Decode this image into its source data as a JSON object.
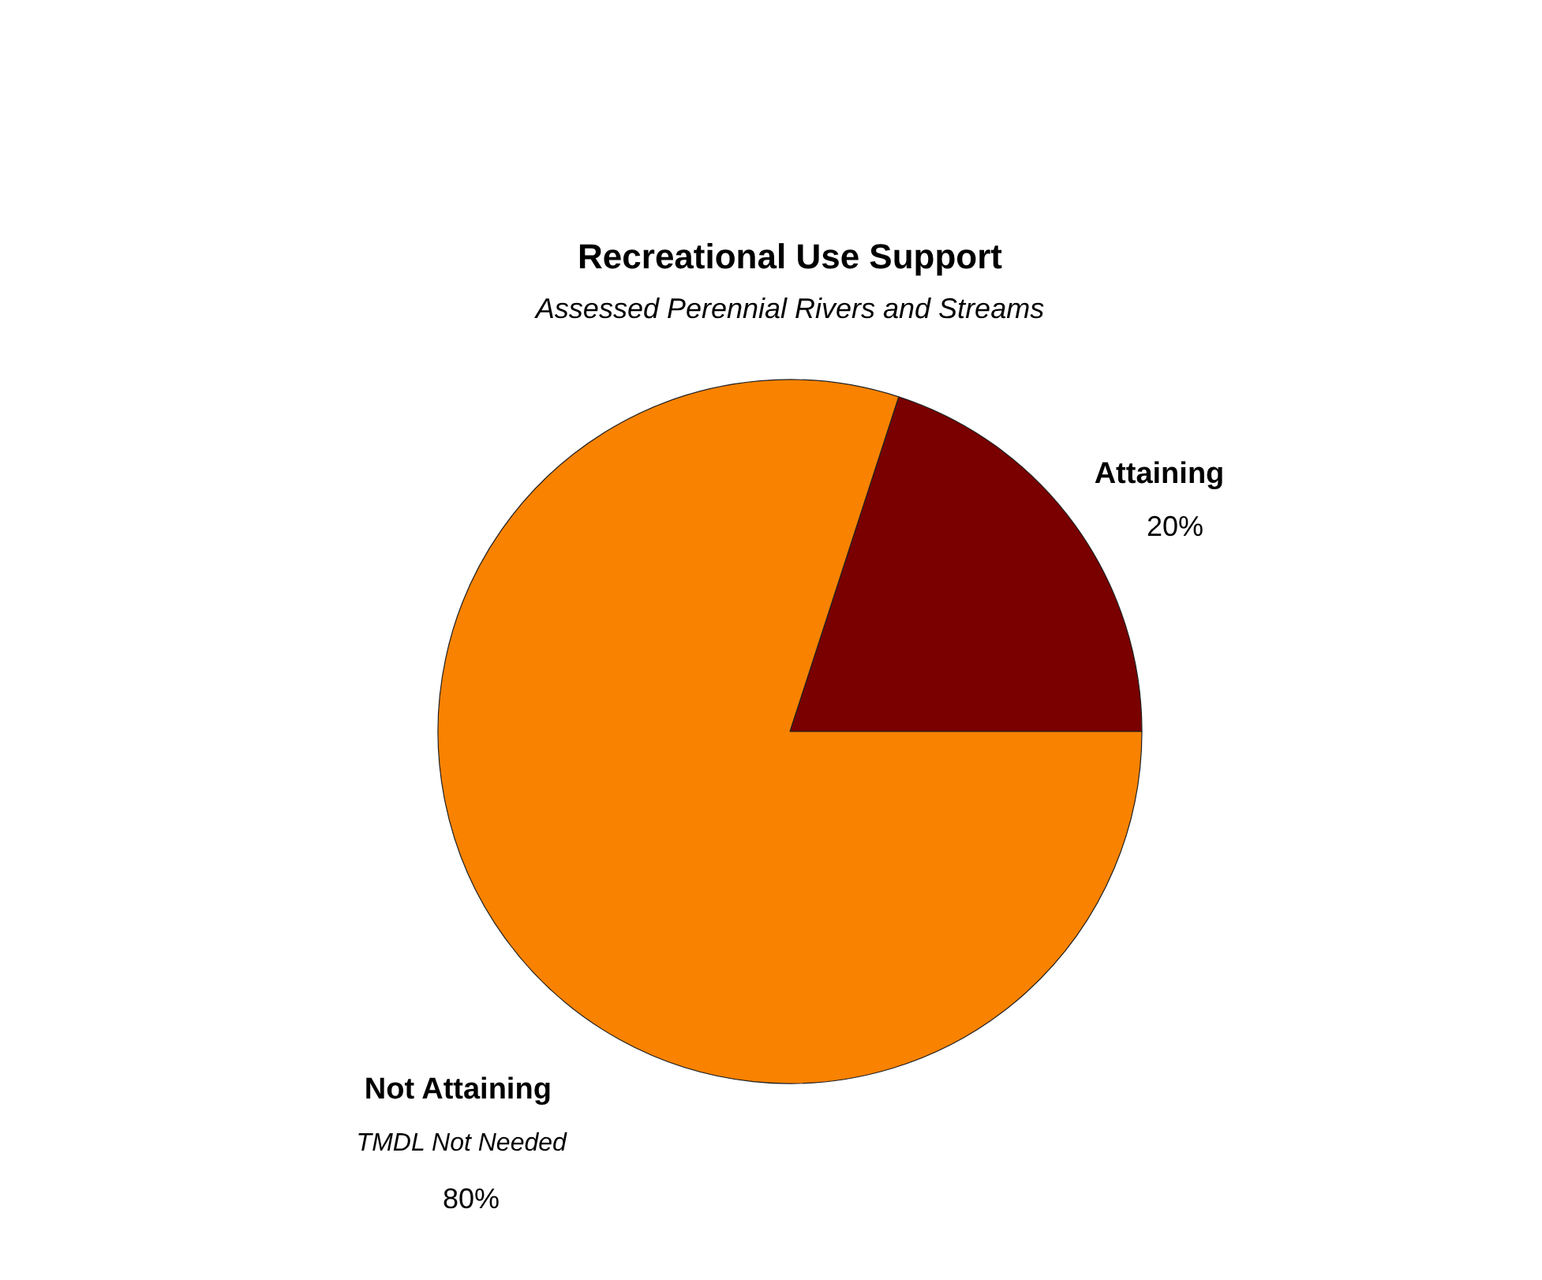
{
  "chart_data": {
    "type": "pie",
    "title": "Recreational Use Support",
    "subtitle": "Assessed Perennial Rivers and Streams",
    "categories": [
      "Attaining",
      "Not Attaining"
    ],
    "values": [
      20,
      80
    ],
    "colors": [
      "#7a0000",
      "#f98200"
    ],
    "value_labels": [
      "20%",
      "80%"
    ],
    "annotations": [
      "TMDL Not Needed"
    ]
  }
}
